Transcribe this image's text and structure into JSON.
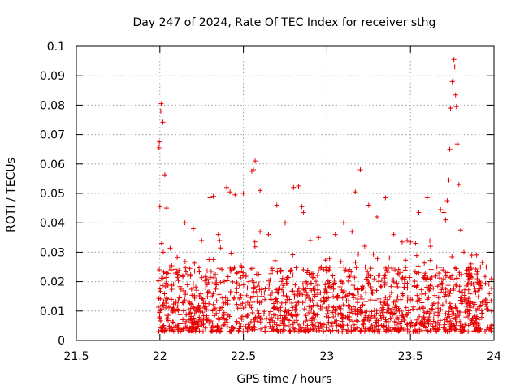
{
  "chart_data": {
    "type": "scatter",
    "title": "Day 247 of 2024, Rate Of TEC Index for receiver sthg",
    "xlabel": "GPS time / hours",
    "ylabel": "ROTI / TECUs",
    "xlim": [
      21.5,
      24
    ],
    "ylim": [
      0,
      0.1
    ],
    "x_ticks": [
      21.5,
      22,
      22.5,
      23,
      23.5,
      24
    ],
    "x_tick_labels": [
      "21.5",
      "22",
      "22.5",
      "23",
      "23.5",
      "24"
    ],
    "y_ticks": [
      0,
      0.01,
      0.02,
      0.03,
      0.04,
      0.05,
      0.06,
      0.07,
      0.08,
      0.09,
      0.1
    ],
    "y_tick_labels": [
      "0",
      "0.01",
      "0.02",
      "0.03",
      "0.04",
      "0.05",
      "0.06",
      "0.07",
      "0.08",
      "0.09",
      "0.1"
    ],
    "grid": true,
    "marker": "plus",
    "color": "#e60000",
    "series": [
      {
        "name": "ROTI",
        "points": [
          [
            21.995,
            0.0655
          ],
          [
            21.997,
            0.0675
          ],
          [
            22.005,
            0.078
          ],
          [
            22.008,
            0.0805
          ],
          [
            22.018,
            0.0742
          ],
          [
            22.03,
            0.0563
          ],
          [
            22.0,
            0.0455
          ],
          [
            22.04,
            0.045
          ],
          [
            22.01,
            0.033
          ],
          [
            22.02,
            0.03
          ],
          [
            22.3,
            0.0485
          ],
          [
            22.32,
            0.049
          ],
          [
            22.4,
            0.052
          ],
          [
            22.42,
            0.0505
          ],
          [
            22.45,
            0.0495
          ],
          [
            22.5,
            0.05
          ],
          [
            22.55,
            0.0575
          ],
          [
            22.56,
            0.058
          ],
          [
            22.57,
            0.061
          ],
          [
            22.6,
            0.051
          ],
          [
            22.8,
            0.052
          ],
          [
            22.83,
            0.0525
          ],
          [
            22.85,
            0.0455
          ],
          [
            22.86,
            0.0435
          ],
          [
            22.7,
            0.046
          ],
          [
            23.2,
            0.058
          ],
          [
            23.17,
            0.0505
          ],
          [
            23.25,
            0.046
          ],
          [
            23.35,
            0.0485
          ],
          [
            23.3,
            0.042
          ],
          [
            23.6,
            0.0485
          ],
          [
            23.55,
            0.0435
          ],
          [
            23.68,
            0.0445
          ],
          [
            23.7,
            0.0435
          ],
          [
            23.71,
            0.041
          ],
          [
            23.72,
            0.0475
          ],
          [
            23.73,
            0.0545
          ],
          [
            23.735,
            0.065
          ],
          [
            23.74,
            0.079
          ],
          [
            23.75,
            0.088
          ],
          [
            23.755,
            0.0885
          ],
          [
            23.76,
            0.0955
          ],
          [
            23.765,
            0.093
          ],
          [
            23.77,
            0.0835
          ],
          [
            23.775,
            0.0795
          ],
          [
            23.78,
            0.0668
          ],
          [
            23.79,
            0.053
          ],
          [
            23.8,
            0.0375
          ],
          [
            23.82,
            0.03
          ],
          [
            23.84,
            0.024
          ],
          [
            23.93,
            0.0265
          ],
          [
            23.45,
            0.0335
          ],
          [
            23.5,
            0.0335
          ],
          [
            23.53,
            0.033
          ],
          [
            23.48,
            0.034
          ],
          [
            22.15,
            0.04
          ],
          [
            22.2,
            0.038
          ],
          [
            22.25,
            0.034
          ],
          [
            22.35,
            0.036
          ],
          [
            22.6,
            0.037
          ],
          [
            22.65,
            0.036
          ],
          [
            22.75,
            0.04
          ],
          [
            22.9,
            0.034
          ],
          [
            22.95,
            0.035
          ],
          [
            23.05,
            0.036
          ],
          [
            23.1,
            0.04
          ],
          [
            23.15,
            0.037
          ],
          [
            23.4,
            0.036
          ],
          [
            23.62,
            0.032
          ],
          [
            23.9,
            0.021
          ]
        ]
      }
    ]
  }
}
